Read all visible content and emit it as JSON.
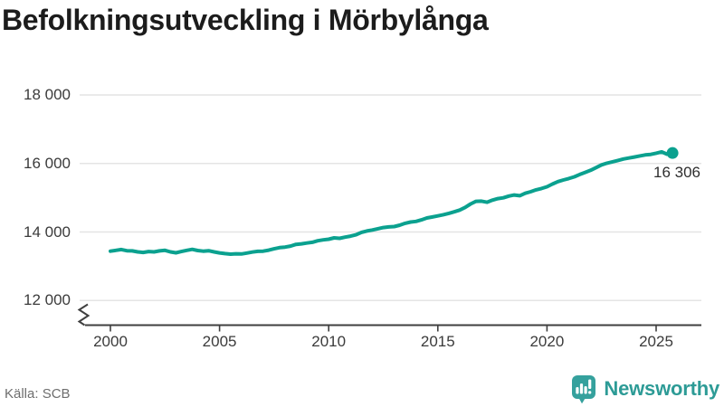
{
  "title": "Befolkningsutveckling i Mörbylånga",
  "source": "Källa: SCB",
  "branding": {
    "label": "Newsworthy"
  },
  "colors": {
    "line": "#0ba18f",
    "grid": "#e4e4e4",
    "axis": "#3f3f3f",
    "tick_text": "#3b3b3b",
    "title_text": "#1c1c1c",
    "muted_text": "#6e6e6e",
    "brand_icon": "#35a19d",
    "brand_text": "#2d9b96"
  },
  "chart_data": {
    "type": "line",
    "title": "Befolkningsutveckling i Mörbylånga",
    "xlabel": "",
    "ylabel": "",
    "x_unit": "year",
    "x_start": 2000,
    "x_step": 0.25,
    "values": [
      13440,
      13465,
      13490,
      13455,
      13450,
      13420,
      13405,
      13430,
      13420,
      13450,
      13465,
      13420,
      13395,
      13430,
      13465,
      13495,
      13460,
      13440,
      13455,
      13420,
      13390,
      13370,
      13355,
      13365,
      13360,
      13385,
      13415,
      13435,
      13440,
      13470,
      13510,
      13545,
      13560,
      13590,
      13640,
      13655,
      13680,
      13700,
      13745,
      13770,
      13790,
      13830,
      13815,
      13850,
      13880,
      13920,
      13990,
      14030,
      14060,
      14095,
      14130,
      14150,
      14160,
      14200,
      14255,
      14290,
      14310,
      14355,
      14410,
      14440,
      14470,
      14505,
      14545,
      14590,
      14640,
      14720,
      14820,
      14895,
      14900,
      14870,
      14930,
      14975,
      15000,
      15050,
      15080,
      15060,
      15130,
      15175,
      15230,
      15270,
      15320,
      15400,
      15470,
      15520,
      15560,
      15610,
      15680,
      15740,
      15800,
      15880,
      15960,
      16010,
      16050,
      16090,
      16130,
      16160,
      16190,
      16220,
      16250,
      16265,
      16300,
      16340,
      16270,
      16306
    ],
    "end_value": 16306,
    "end_label": "16 306",
    "x_ticks": [
      2000,
      2005,
      2010,
      2015,
      2020,
      2025
    ],
    "x_tick_labels": [
      "2000",
      "2005",
      "2010",
      "2015",
      "2020",
      "2025"
    ],
    "y_ticks": [
      12000,
      14000,
      16000,
      18000
    ],
    "y_tick_labels": [
      "12 000",
      "14 000",
      "16 000",
      "18 000"
    ],
    "ylim": [
      12000,
      18000
    ],
    "axis_break": true,
    "grid": "horizontal",
    "legend": "none"
  }
}
